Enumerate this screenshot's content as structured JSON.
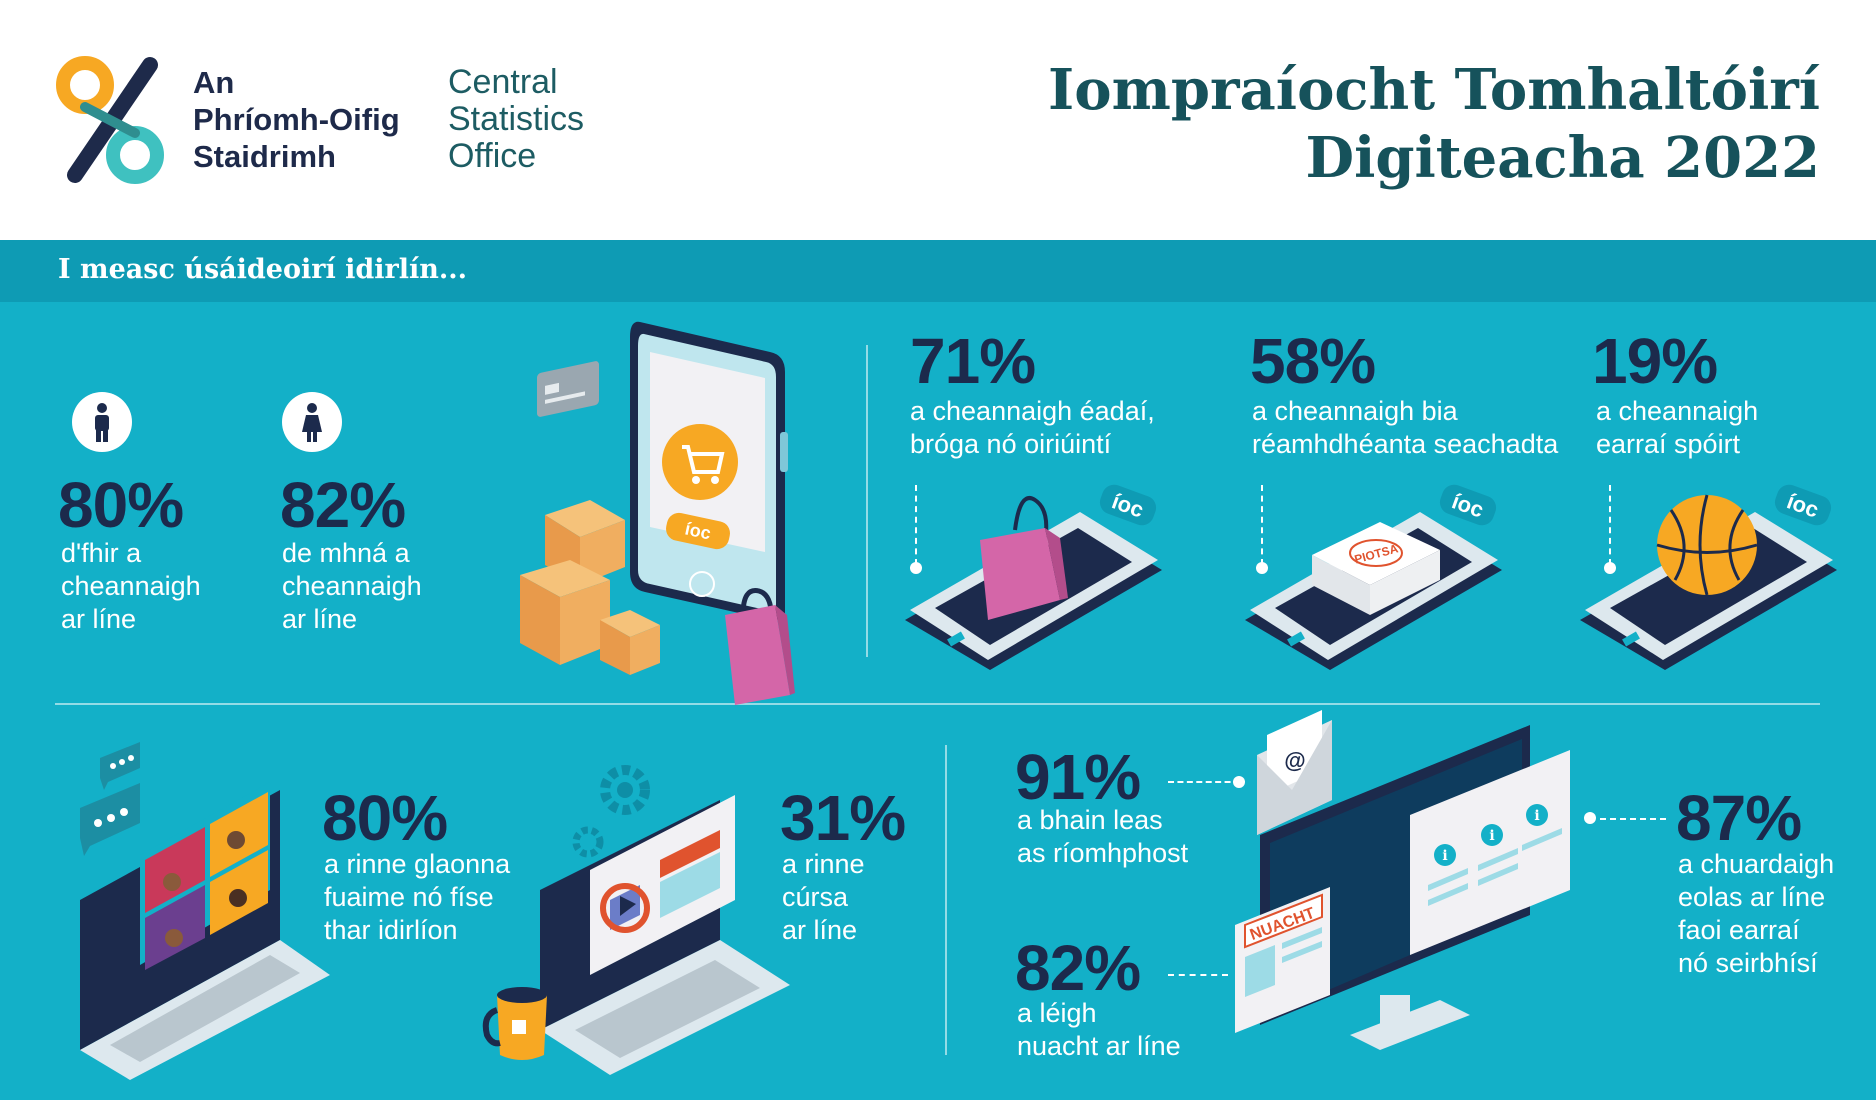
{
  "header": {
    "logo_ga": [
      "An",
      "Phríomh-Oifig",
      "Staidrimh"
    ],
    "logo_en": [
      "Central",
      "Statistics",
      "Office"
    ],
    "title_line1": "Iompraíocht Tomhaltóirí",
    "title_line2": "Digiteacha 2022"
  },
  "band": {
    "text": "I measc úsáideoirí idirlín..."
  },
  "stats": [
    {
      "pct": "80%",
      "desc": "d'fhir a\ncheannaigh\nar líne"
    },
    {
      "pct": "82%",
      "desc": "de mhná a\ncheannaigh\nar líne"
    },
    {
      "pct": "71%",
      "desc": "a cheannaigh éadaí,\nbróga nó oiriúintí"
    },
    {
      "pct": "58%",
      "desc": "a cheannaigh bia\nréamhdhéanta seachadta"
    },
    {
      "pct": "19%",
      "desc": "a cheannaigh\nearraí spóirt"
    },
    {
      "pct": "80%",
      "desc": "a rinne glaonna\nfuaime nó físe\nthar idirlíon"
    },
    {
      "pct": "31%",
      "desc": "a rinne\ncúrsa\nar líne"
    },
    {
      "pct": "91%",
      "desc": "a bhain leas\nas ríomhphost"
    },
    {
      "pct": "82%",
      "desc": " a léigh\nnuacht ar líne"
    },
    {
      "pct": "87%",
      "desc": "a chuardaigh\neolas ar líne\nfaoi earraí\nnó seirbhísí"
    }
  ],
  "labels": {
    "ioc": "íoc",
    "piotsa": "PIOTSA",
    "nuacht": "NUACHT",
    "at": "@",
    "info": "i"
  },
  "colors": {
    "background": "#13b0c8",
    "band": "#0e9bb4",
    "title": "#16525b",
    "pct": "#1c2a4c",
    "orange": "#f7a823",
    "pink": "#d466a8"
  },
  "icons": [
    "male-person-icon",
    "female-person-icon",
    "envelope-icon",
    "gear-icon",
    "basketball-icon",
    "shopping-bag-icon",
    "cardboard-box-icon",
    "credit-card-icon",
    "laptop-icon",
    "monitor-icon",
    "coffee-mug-icon",
    "chat-bubble-icon"
  ]
}
